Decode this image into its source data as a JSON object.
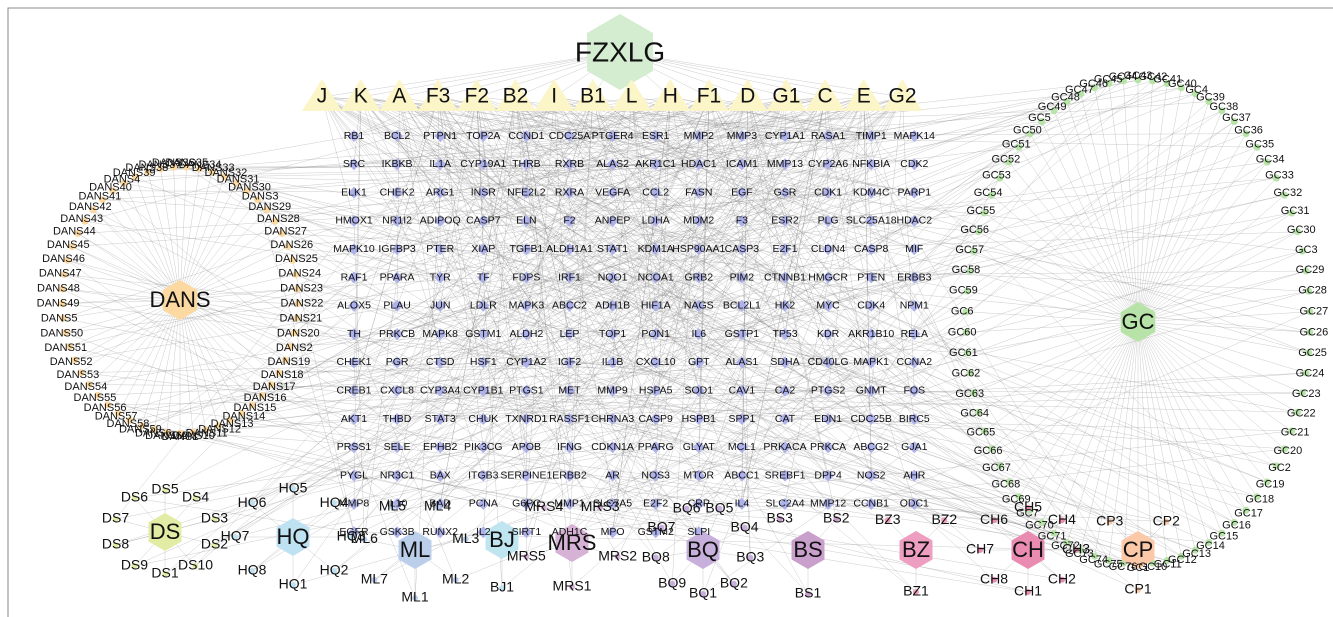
{
  "hub": "FZXLG",
  "herbs": [
    "J",
    "K",
    "A",
    "F3",
    "F2",
    "B2",
    "I",
    "B1",
    "L",
    "H",
    "F1",
    "D",
    "G1",
    "C",
    "E",
    "G2"
  ],
  "targets": [
    [
      "RB1",
      "BCL2",
      "PTPN1",
      "TOP2A",
      "CCND1",
      "CDC25A",
      "PTGER4",
      "ESR1",
      "MMP2",
      "MMP3",
      "CYP1A1",
      "RASA1",
      "TIMP1",
      "MAPK14"
    ],
    [
      "SRC",
      "IKBKB",
      "IL1A",
      "CYP19A1",
      "THRB",
      "RXRB",
      "ALAS2",
      "AKR1C1",
      "HDAC1",
      "ICAM1",
      "MMP13",
      "CYP2A6",
      "NFKBIA",
      "CDK2"
    ],
    [
      "ELK1",
      "CHEK2",
      "ARG1",
      "INSR",
      "NFE2L2",
      "RXRA",
      "VEGFA",
      "CCL2",
      "FASN",
      "EGF",
      "GSR",
      "CDK1",
      "KDM4C",
      "PARP1"
    ],
    [
      "HMOX1",
      "NR1I2",
      "ADIPOQ",
      "CASP7",
      "ELN",
      "F2",
      "ANPEP",
      "LDHA",
      "MDM2",
      "F3",
      "ESR2",
      "PLG",
      "SLC25A18",
      "HDAC2"
    ],
    [
      "MAPK10",
      "IGFBP3",
      "PTER",
      "XIAP",
      "TGFB1",
      "ALDH1A1",
      "STAT1",
      "KDM1A",
      "HSP90AA1",
      "CASP3",
      "E2F1",
      "CLDN4",
      "CASP8",
      "MIF"
    ],
    [
      "RAF1",
      "PPARA",
      "TYR",
      "TF",
      "FDPS",
      "IRF1",
      "NQO1",
      "NCOA1",
      "GRB2",
      "PIM2",
      "CTNNB1",
      "HMGCR",
      "PTEN",
      "ERBB3"
    ],
    [
      "ALOX5",
      "PLAU",
      "JUN",
      "LDLR",
      "MAPK3",
      "ABCC2",
      "ADH1B",
      "HIF1A",
      "NAGS",
      "BCL2L1",
      "HK2",
      "MYC",
      "CDK4",
      "NPM1"
    ],
    [
      "TH",
      "PRKCB",
      "MAPK8",
      "GSTM1",
      "ALDH2",
      "LEP",
      "TOP1",
      "PON1",
      "IL6",
      "GSTP1",
      "TP53",
      "KDR",
      "AKR1B10",
      "RELA"
    ],
    [
      "CHEK1",
      "PGR",
      "CTSD",
      "HSF1",
      "CYP1A2",
      "IGF2",
      "IL1B",
      "CXCL10",
      "GPT",
      "ALAS1",
      "SDHA",
      "CD40LG",
      "MAPK1",
      "CCNA2"
    ],
    [
      "CREB1",
      "CXCL8",
      "CYP3A4",
      "CYP1B1",
      "PTGS1",
      "MET",
      "MMP9",
      "HSPA5",
      "SOD1",
      "CAV1",
      "CA2",
      "PTGS2",
      "GNMT",
      "FOS"
    ],
    [
      "AKT1",
      "THBD",
      "STAT3",
      "CHUK",
      "TXNRD1",
      "RASSF1",
      "CHRNA3",
      "CASP9",
      "HSPB1",
      "SPP1",
      "CAT",
      "EDN1",
      "CDC25B",
      "BIRC5"
    ],
    [
      "PRSS1",
      "SELE",
      "EPHB2",
      "PIK3CG",
      "APOB",
      "IFNG",
      "CDKN1A",
      "PPARG",
      "GLYAT",
      "MCL1",
      "PRKACA",
      "PRKCA",
      "ABCG2",
      "GJA1"
    ],
    [
      "PYGL",
      "NR3C1",
      "BAX",
      "ITGB3",
      "SERPINE1",
      "ERBB2",
      "AR",
      "NOS3",
      "MTOR",
      "ABCC1",
      "SREBF1",
      "DPP4",
      "NOS2",
      "AHR"
    ],
    [
      "MMP8",
      "IL10",
      "BAD",
      "PCNA",
      "G6PC",
      "MMP1",
      "SLC7A5",
      "E2F2",
      "CRP",
      "IL4",
      "SLC2A4",
      "MMP12",
      "CCNB1",
      "ODC1"
    ],
    [
      "EGFR",
      "GSK3B",
      "RUNX2",
      "IL2",
      "SIRT1",
      "ADH1C",
      "MPO",
      "GSTM2",
      "SLPI"
    ]
  ],
  "dans": {
    "label": "DANS",
    "color": "#fbd9a0",
    "nodes": [
      "DANS1",
      "DANS10",
      "DANS11",
      "DANS12",
      "DANS13",
      "DANS14",
      "DANS15",
      "DANS16",
      "DANS17",
      "DANS18",
      "DANS19",
      "DANS2",
      "DANS20",
      "DANS21",
      "DANS22",
      "DANS23",
      "DANS24",
      "DANS25",
      "DANS26",
      "DANS27",
      "DANS28",
      "DANS29",
      "DANS3",
      "DANS30",
      "DANS31",
      "DANS32",
      "DANS33",
      "DANS34",
      "DANS35",
      "DANS36",
      "DANS37",
      "DANS38",
      "DANS39",
      "DANS4",
      "DANS40",
      "DANS41",
      "DANS42",
      "DANS43",
      "DANS44",
      "DANS45",
      "DANS46",
      "DANS47",
      "DANS48",
      "DANS49",
      "DANS5",
      "DANS50",
      "DANS51",
      "DANS52",
      "DANS53",
      "DANS54",
      "DANS55",
      "DANS56",
      "DANS57",
      "DANS58",
      "DANS59",
      "DANS6",
      "DANS60"
    ]
  },
  "gc": {
    "label": "GC",
    "color": "#b8e3a8",
    "nodes": [
      "GC1",
      "GC10",
      "GC11",
      "GC12",
      "GC13",
      "GC14",
      "GC15",
      "GC16",
      "GC17",
      "GC18",
      "GC19",
      "GC2",
      "GC20",
      "GC21",
      "GC22",
      "GC23",
      "GC24",
      "GC25",
      "GC26",
      "GC27",
      "GC28",
      "GC29",
      "GC3",
      "GC30",
      "GC31",
      "GC32",
      "GC33",
      "GC34",
      "GC35",
      "GC36",
      "GC37",
      "GC38",
      "GC39",
      "GC4",
      "GC40",
      "GC41",
      "GC42",
      "GC43",
      "GC44",
      "GC45",
      "GC46",
      "GC47",
      "GC48",
      "GC49",
      "GC5",
      "GC50",
      "GC51",
      "GC52",
      "GC53",
      "GC54",
      "GC55",
      "GC56",
      "GC57",
      "GC58",
      "GC59",
      "GC6",
      "GC60",
      "GC61",
      "GC62",
      "GC63",
      "GC64",
      "GC65",
      "GC66",
      "GC67",
      "GC68",
      "GC69",
      "GC7",
      "GC70",
      "GC71",
      "GC72",
      "GC73",
      "GC74",
      "GC75",
      "GC76"
    ]
  },
  "groups": [
    {
      "label": "DS",
      "color": "#e3eca4",
      "nodes": [
        "DS1",
        "DS10",
        "DS2",
        "DS3",
        "DS4",
        "DS5",
        "DS6",
        "DS7",
        "DS8",
        "DS9"
      ]
    },
    {
      "label": "HQ",
      "color": "#bfe2f2",
      "nodes": [
        "HQ1",
        "HQ2",
        "HQ3",
        "HQ4",
        "HQ5",
        "HQ6",
        "HQ7",
        "HQ8"
      ]
    },
    {
      "label": "ML",
      "color": "#bccfea",
      "nodes": [
        "ML1",
        "ML2",
        "ML3",
        "ML4",
        "ML5",
        "ML6",
        "ML7"
      ]
    },
    {
      "label": "BJ",
      "color": "#bfe5f0",
      "nodes": [
        "BJ1"
      ]
    },
    {
      "label": "MRS",
      "color": "#d6b2d6",
      "nodes": [
        "MRS1",
        "MRS2",
        "MRS3",
        "MRS4",
        "MRS5"
      ]
    },
    {
      "label": "BQ",
      "color": "#c8b0dc",
      "nodes": [
        "BQ1",
        "BQ2",
        "BQ3",
        "BQ4",
        "BQ5",
        "BQ6",
        "BQ7",
        "BQ8",
        "BQ9"
      ]
    },
    {
      "label": "BS",
      "color": "#c9a0cc",
      "nodes": [
        "BS1",
        "BS2",
        "BS3"
      ]
    },
    {
      "label": "BZ",
      "color": "#ee9ec0",
      "nodes": [
        "BZ1",
        "BZ2",
        "BZ3"
      ]
    },
    {
      "label": "CH",
      "color": "#ea8cb2",
      "nodes": [
        "CH1",
        "CH2",
        "CH3",
        "CH4",
        "CH5",
        "CH6",
        "CH7",
        "CH8"
      ]
    },
    {
      "label": "CP",
      "color": "#fbc9a8",
      "nodes": [
        "CP1",
        "CP2",
        "CP3"
      ]
    }
  ]
}
